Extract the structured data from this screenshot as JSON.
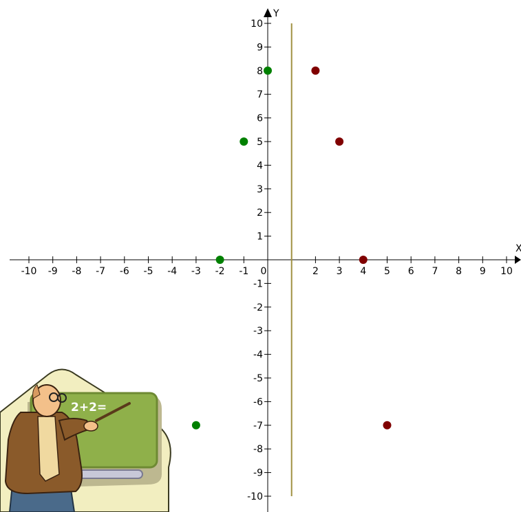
{
  "chart_data": {
    "type": "scatter",
    "title": "",
    "xlabel": "X",
    "ylabel": "Y",
    "xlim": [
      -10,
      10
    ],
    "ylim": [
      -10,
      10
    ],
    "x_ticks": [
      -10,
      -9,
      -8,
      -7,
      -6,
      -5,
      -4,
      -3,
      -2,
      -1,
      0,
      2,
      3,
      4,
      5,
      6,
      7,
      8,
      9,
      10
    ],
    "y_ticks": [
      -10,
      -9,
      -8,
      -7,
      -6,
      -5,
      -4,
      -3,
      -2,
      -1,
      1,
      2,
      3,
      4,
      5,
      6,
      7,
      8,
      9,
      10
    ],
    "grid": false,
    "legend": "none",
    "vertical_line": {
      "x": 1,
      "color": "#a09040"
    },
    "series": [
      {
        "color": "#008000",
        "points": [
          {
            "x": 0,
            "y": 8
          },
          {
            "x": -1,
            "y": 5
          },
          {
            "x": -2,
            "y": 0
          },
          {
            "x": -3,
            "y": -7
          }
        ]
      },
      {
        "color": "#800000",
        "points": [
          {
            "x": 2,
            "y": 8
          },
          {
            "x": 3,
            "y": 5
          },
          {
            "x": 4,
            "y": 0
          },
          {
            "x": 5,
            "y": -7
          }
        ]
      }
    ]
  },
  "illustration": {
    "icon": "teacher-at-chalkboard-clipart",
    "board_text": "2+2=",
    "colors": {
      "board": "#8fb04a",
      "board_frame": "#6e8a33",
      "background_shape": "#f2eec0",
      "jacket": "#8a5a2a",
      "shirt": "#f0d9a0",
      "skin": "#f3c08a",
      "trousers": "#4a6a8a"
    }
  }
}
